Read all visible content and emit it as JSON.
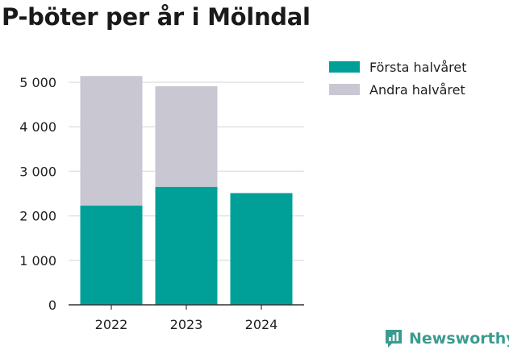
{
  "chart_data": {
    "type": "bar",
    "stacked": true,
    "title": "P-böter per år i Mölndal",
    "categories": [
      "2022",
      "2023",
      "2024"
    ],
    "series": [
      {
        "name": "Första halvåret",
        "values": [
          2230,
          2650,
          2510
        ]
      },
      {
        "name": "Andra halvåret",
        "values": [
          2910,
          2260,
          0
        ]
      }
    ],
    "ylim": [
      0,
      5000
    ],
    "yticks": [
      0,
      1000,
      2000,
      3000,
      4000,
      5000
    ],
    "ytick_labels": [
      "0",
      "1 000",
      "2 000",
      "3 000",
      "4 000",
      "5 000"
    ],
    "grid": true,
    "legend_position": "right",
    "colors": {
      "Första halvåret": "#00a098",
      "Andra halvåret": "#c8c7d2"
    }
  },
  "brand": {
    "name": "Newsworthy",
    "icon": "newsworthy-logo-icon",
    "color": "#3c9b8f"
  }
}
